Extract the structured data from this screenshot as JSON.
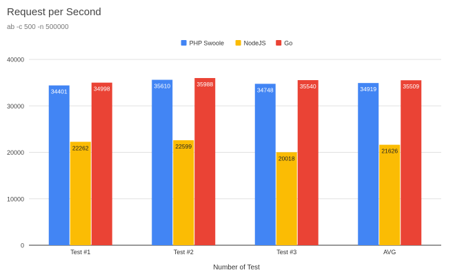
{
  "chart_data": {
    "type": "bar",
    "title": "Request per Second",
    "subtitle": "ab -c 500 -n 500000",
    "xlabel": "Number of Test",
    "ylabel": "",
    "categories": [
      "Test #1",
      "Test #2",
      "Test #3",
      "AVG"
    ],
    "series": [
      {
        "name": "PHP Swoole",
        "color": "#4285f4",
        "values": [
          34401,
          35610,
          34748,
          34919
        ]
      },
      {
        "name": "NodeJS",
        "color": "#fbbc04",
        "values": [
          22262,
          22599,
          20018,
          21626
        ]
      },
      {
        "name": "Go",
        "color": "#ea4335",
        "values": [
          34998,
          35988,
          35540,
          35509
        ]
      }
    ],
    "ylim": [
      0,
      40000
    ],
    "yticks": [
      0,
      10000,
      20000,
      30000,
      40000
    ],
    "ytick_labels": [
      "0",
      "10000",
      "20000",
      "30000",
      "40000"
    ],
    "grid": true,
    "legend": "top-center",
    "data_labels": true
  }
}
